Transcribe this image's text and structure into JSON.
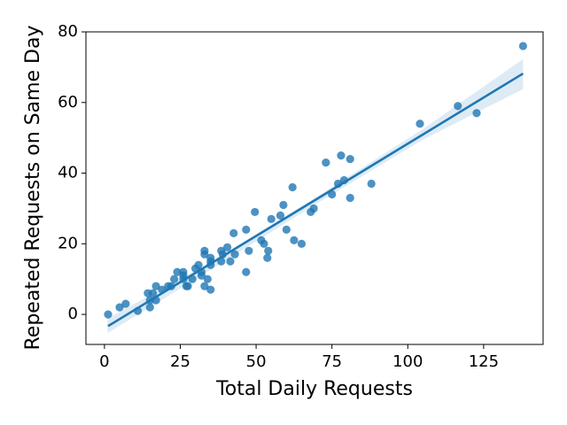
{
  "chart_data": {
    "type": "scatter",
    "xlabel": "Total Daily Requests",
    "ylabel": "Repeated Requests on Same Day",
    "xlim": [
      -6.1,
      144.6
    ],
    "ylim": [
      -8.5,
      80
    ],
    "xticks": [
      0,
      25,
      50,
      75,
      100,
      125
    ],
    "yticks": [
      0,
      20,
      40,
      60,
      80
    ],
    "grid": false,
    "color": "#1f77b4",
    "points": {
      "x": [
        1.2,
        5,
        7,
        11,
        14.3,
        15,
        15,
        16,
        17,
        17,
        19,
        21,
        22,
        23,
        24,
        26,
        26,
        26,
        27,
        27.5,
        29,
        30,
        31,
        32,
        32,
        33,
        33,
        33,
        34,
        35,
        35,
        35,
        35,
        38.5,
        39,
        38.5,
        40.5,
        41.5,
        42.6,
        43,
        46.7,
        46.7,
        47.6,
        49.6,
        51.7,
        52.6,
        53.7,
        54,
        55,
        58,
        59,
        60,
        62,
        62.5,
        65,
        68,
        69,
        73,
        75,
        77,
        78,
        79,
        81,
        81,
        88,
        104,
        116.5,
        122.7,
        138
      ],
      "y": [
        0,
        2,
        3,
        1,
        6,
        4,
        2,
        6,
        8,
        4,
        7,
        8,
        8,
        10,
        12,
        11,
        12,
        10,
        8,
        8,
        10,
        13,
        14,
        12,
        11,
        8,
        18,
        17,
        10,
        15,
        16,
        14,
        7,
        15,
        17,
        18,
        19,
        15,
        23,
        17,
        12,
        24,
        18,
        29,
        21,
        20,
        16,
        18,
        27,
        28,
        31,
        24,
        36,
        21,
        20,
        29,
        30,
        43,
        34,
        37,
        45,
        38,
        33,
        44,
        37,
        54,
        59,
        57,
        76
      ]
    },
    "fit": {
      "x": [
        1.2,
        138
      ],
      "y": [
        -3.3,
        68.2
      ]
    },
    "band": {
      "x": [
        1,
        35,
        70,
        105,
        138
      ],
      "upper": [
        -1.2,
        14.8,
        33.3,
        52.5,
        72.3
      ],
      "lower": [
        -5.3,
        12.6,
        31.4,
        49.5,
        63.8
      ]
    }
  }
}
